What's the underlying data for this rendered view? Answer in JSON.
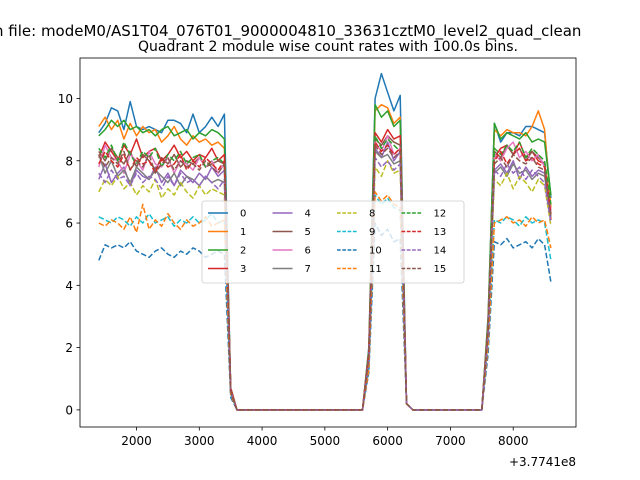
{
  "figure": {
    "suptitle": "n file: modeM0/AS1T04_076T01_9000004810_33631cztM0_level2_quad_clean"
  },
  "chart_data": {
    "type": "line",
    "title": "Quadrant 2 module wise count rates with 100.0s bins.",
    "xlabel": "",
    "ylabel": "",
    "x_offset_label": "+3.7741e8",
    "xlim": [
      1100,
      9000
    ],
    "ylim": [
      -0.55,
      11.3
    ],
    "xticks": [
      2000,
      3000,
      4000,
      5000,
      6000,
      7000,
      8000
    ],
    "yticks": [
      0,
      2,
      4,
      6,
      8,
      10
    ],
    "grid": false,
    "legend": {
      "placement": "center",
      "ncol": 4
    },
    "x": [
      1400,
      1500,
      1600,
      1700,
      1800,
      1900,
      2000,
      2100,
      2200,
      2300,
      2400,
      2500,
      2600,
      2700,
      2800,
      2900,
      3000,
      3100,
      3200,
      3300,
      3400,
      3500,
      3600,
      3700,
      5600,
      5700,
      5800,
      5900,
      6000,
      6100,
      6200,
      6300,
      6400,
      7500,
      7600,
      7700,
      7800,
      7900,
      8000,
      8100,
      8200,
      8300,
      8400,
      8500,
      8600
    ],
    "series": [
      {
        "name": "0",
        "color": "#1f77b4",
        "dash": "solid",
        "values": [
          8.9,
          9.2,
          9.7,
          9.6,
          9.0,
          9.9,
          9.1,
          9.0,
          9.1,
          9.0,
          8.9,
          9.3,
          9.3,
          9.2,
          8.9,
          9.5,
          8.9,
          9.1,
          9.4,
          9.1,
          9.5,
          0.6,
          0,
          0,
          0,
          2.0,
          10.0,
          10.8,
          10.2,
          9.6,
          10.1,
          0.2,
          0,
          0,
          3.0,
          9.2,
          8.6,
          8.9,
          8.9,
          8.8,
          9.1,
          9.1,
          9.0,
          8.9,
          6.8
        ]
      },
      {
        "name": "1",
        "color": "#ff7f0e",
        "dash": "solid",
        "values": [
          9.1,
          9.4,
          9.0,
          9.3,
          8.7,
          9.2,
          8.8,
          9.1,
          8.9,
          9.0,
          8.6,
          8.8,
          9.1,
          8.7,
          8.5,
          8.8,
          8.6,
          8.7,
          8.5,
          8.6,
          8.4,
          0.7,
          0,
          0,
          0,
          1.9,
          9.6,
          9.8,
          9.7,
          9.2,
          9.4,
          0.2,
          0,
          0,
          2.9,
          9.0,
          8.8,
          9.0,
          8.9,
          8.9,
          8.8,
          9.1,
          9.6,
          9.0,
          6.5
        ]
      },
      {
        "name": "2",
        "color": "#2ca02c",
        "dash": "solid",
        "values": [
          8.8,
          9.0,
          9.3,
          9.1,
          9.3,
          9.0,
          9.1,
          8.9,
          9.0,
          8.8,
          9.0,
          9.1,
          8.8,
          8.9,
          9.0,
          8.7,
          8.9,
          8.8,
          9.0,
          8.9,
          8.7,
          0.7,
          0,
          0,
          0,
          1.9,
          9.8,
          9.4,
          9.6,
          9.1,
          9.3,
          0.2,
          0,
          0,
          2.9,
          9.2,
          8.7,
          8.9,
          8.8,
          8.7,
          8.9,
          8.6,
          8.7,
          8.6,
          6.9
        ]
      },
      {
        "name": "3",
        "color": "#d62728",
        "dash": "solid",
        "values": [
          8.1,
          8.6,
          8.3,
          8.0,
          8.5,
          8.2,
          8.7,
          8.1,
          8.3,
          8.4,
          8.0,
          8.2,
          8.5,
          8.1,
          8.3,
          8.0,
          8.2,
          8.1,
          8.4,
          8.0,
          8.2,
          0.7,
          0,
          0,
          0,
          1.8,
          8.9,
          8.6,
          9.0,
          8.7,
          8.8,
          0.2,
          0,
          0,
          2.7,
          8.1,
          8.4,
          8.5,
          8.2,
          8.6,
          8.1,
          8.3,
          8.0,
          7.9,
          6.1
        ]
      },
      {
        "name": "4",
        "color": "#9467bd",
        "dash": "solid",
        "values": [
          7.4,
          7.9,
          7.3,
          7.6,
          7.8,
          7.2,
          7.7,
          7.5,
          7.4,
          7.8,
          7.3,
          7.6,
          7.2,
          7.7,
          7.5,
          7.3,
          7.6,
          7.4,
          7.8,
          7.5,
          7.7,
          0.6,
          0,
          0,
          0,
          1.7,
          8.4,
          8.1,
          8.6,
          8.0,
          8.3,
          0.2,
          0,
          0,
          2.5,
          7.7,
          7.9,
          7.6,
          8.0,
          7.4,
          7.8,
          7.5,
          7.7,
          7.6,
          6.4
        ]
      },
      {
        "name": "5",
        "color": "#8c564b",
        "dash": "solid",
        "values": [
          8.3,
          8.0,
          8.4,
          8.1,
          7.9,
          8.3,
          7.8,
          8.2,
          8.0,
          7.7,
          8.1,
          7.9,
          8.2,
          7.8,
          8.0,
          7.9,
          8.1,
          7.8,
          7.9,
          8.0,
          7.9,
          0.6,
          0,
          0,
          0,
          1.7,
          8.7,
          8.5,
          8.8,
          8.6,
          8.5,
          0.2,
          0,
          0,
          2.6,
          8.3,
          8.1,
          8.5,
          8.2,
          8.4,
          8.0,
          8.3,
          8.1,
          7.9,
          6.3
        ]
      },
      {
        "name": "6",
        "color": "#e377c2",
        "dash": "solid",
        "values": [
          7.8,
          8.5,
          8.1,
          8.0,
          7.6,
          8.2,
          8.0,
          7.7,
          8.3,
          7.9,
          7.8,
          8.1,
          7.6,
          8.0,
          7.9,
          7.7,
          8.1,
          7.8,
          8.0,
          7.6,
          7.9,
          0.6,
          0,
          0,
          0,
          1.7,
          8.6,
          8.3,
          8.8,
          8.2,
          8.4,
          0.2,
          0,
          0,
          2.6,
          8.2,
          8.0,
          8.4,
          8.6,
          8.1,
          8.3,
          8.0,
          8.2,
          7.8,
          6.4
        ]
      },
      {
        "name": "7",
        "color": "#7f7f7f",
        "dash": "solid",
        "values": [
          8.2,
          7.6,
          8.0,
          7.5,
          7.7,
          7.3,
          7.8,
          7.6,
          7.4,
          7.7,
          7.5,
          7.3,
          7.6,
          7.2,
          7.5,
          7.4,
          7.2,
          7.5,
          7.3,
          7.4,
          7.3,
          0.6,
          0,
          0,
          0,
          1.6,
          8.3,
          8.1,
          8.2,
          7.9,
          8.0,
          0.2,
          0,
          0,
          2.5,
          7.6,
          7.8,
          7.5,
          7.9,
          7.6,
          7.7,
          7.4,
          7.6,
          7.5,
          6.2
        ]
      },
      {
        "name": "8",
        "color": "#bcbd22",
        "dash": "dashed",
        "values": [
          7.0,
          7.4,
          7.2,
          7.5,
          7.1,
          7.3,
          6.9,
          7.2,
          7.0,
          7.4,
          6.8,
          7.1,
          6.9,
          7.3,
          7.0,
          6.8,
          7.2,
          6.9,
          7.1,
          7.0,
          6.9,
          0.6,
          0,
          0,
          0,
          1.5,
          7.8,
          7.5,
          8.0,
          7.6,
          7.7,
          0.2,
          0,
          0,
          2.4,
          7.4,
          7.2,
          7.6,
          7.1,
          7.5,
          7.3,
          7.0,
          7.4,
          7.2,
          5.9
        ]
      },
      {
        "name": "9",
        "color": "#17becf",
        "dash": "dashed",
        "values": [
          6.2,
          6.1,
          6.0,
          6.2,
          6.1,
          5.9,
          6.2,
          6.0,
          6.3,
          6.0,
          6.1,
          6.2,
          5.9,
          6.1,
          6.0,
          6.2,
          6.0,
          6.1,
          6.3,
          6.0,
          6.1,
          0.5,
          0,
          0,
          0,
          1.3,
          6.9,
          6.6,
          6.8,
          6.5,
          6.4,
          0.2,
          0,
          0,
          2.1,
          6.1,
          6.0,
          6.2,
          6.1,
          5.9,
          6.2,
          6.0,
          6.1,
          6.0,
          4.8
        ]
      },
      {
        "name": "10",
        "color": "#1f77b4",
        "dash": "dashed",
        "values": [
          4.8,
          5.3,
          5.2,
          5.3,
          5.2,
          5.4,
          5.1,
          5.0,
          4.9,
          5.1,
          5.2,
          5.0,
          4.9,
          5.1,
          5.0,
          5.2,
          5.1,
          4.9,
          5.0,
          5.1,
          5.0,
          0.4,
          0,
          0,
          0,
          1.2,
          6.0,
          5.6,
          5.8,
          5.4,
          5.5,
          0.2,
          0,
          0,
          1.8,
          5.4,
          5.3,
          5.5,
          5.2,
          5.3,
          5.4,
          5.2,
          5.5,
          5.3,
          4.1
        ]
      },
      {
        "name": "11",
        "color": "#ff7f0e",
        "dash": "dashed",
        "values": [
          6.0,
          5.9,
          6.1,
          6.0,
          5.8,
          6.2,
          5.7,
          6.6,
          5.8,
          6.1,
          5.9,
          6.3,
          6.0,
          5.8,
          6.1,
          5.9,
          6.0,
          6.2,
          5.9,
          6.0,
          6.1,
          0.5,
          0,
          0,
          0,
          1.3,
          7.0,
          6.7,
          6.9,
          6.6,
          6.5,
          0.2,
          0,
          0,
          2.1,
          6.0,
          6.1,
          6.2,
          6.0,
          6.1,
          5.9,
          6.2,
          6.0,
          6.1,
          5.2
        ]
      },
      {
        "name": "12",
        "color": "#2ca02c",
        "dash": "dashed",
        "values": [
          8.4,
          8.1,
          8.5,
          8.0,
          8.6,
          8.2,
          7.9,
          8.3,
          8.1,
          8.4,
          7.8,
          8.2,
          8.0,
          8.3,
          7.9,
          8.1,
          8.2,
          7.8,
          8.0,
          8.1,
          7.9,
          0.6,
          0,
          0,
          0,
          1.8,
          8.8,
          8.4,
          8.7,
          8.5,
          8.3,
          0.2,
          0,
          0,
          2.6,
          8.4,
          8.2,
          8.5,
          8.3,
          8.6,
          8.1,
          8.4,
          8.2,
          8.0,
          6.6
        ]
      },
      {
        "name": "13",
        "color": "#d62728",
        "dash": "dashed",
        "values": [
          7.9,
          8.3,
          8.0,
          7.8,
          8.2,
          7.7,
          8.1,
          7.9,
          8.0,
          7.6,
          8.1,
          7.8,
          7.9,
          8.2,
          7.7,
          8.0,
          7.8,
          8.1,
          7.9,
          7.7,
          8.0,
          0.6,
          0,
          0,
          0,
          1.8,
          8.6,
          8.3,
          8.5,
          8.2,
          8.4,
          0.2,
          0,
          0,
          2.6,
          8.0,
          8.3,
          7.9,
          8.2,
          8.4,
          8.0,
          8.1,
          7.9,
          7.8,
          6.3
        ]
      },
      {
        "name": "14",
        "color": "#9467bd",
        "dash": "dashed",
        "values": [
          7.6,
          7.3,
          7.7,
          7.4,
          7.5,
          7.2,
          7.6,
          7.3,
          7.5,
          7.4,
          7.1,
          7.5,
          7.2,
          7.6,
          7.3,
          7.4,
          7.2,
          7.5,
          7.3,
          7.1,
          7.4,
          0.6,
          0,
          0,
          0,
          1.6,
          8.1,
          7.8,
          8.0,
          7.7,
          7.9,
          0.2,
          0,
          0,
          2.4,
          7.7,
          7.5,
          7.9,
          7.6,
          7.8,
          7.4,
          7.7,
          7.5,
          7.3,
          6.0
        ]
      },
      {
        "name": "15",
        "color": "#8c564b",
        "dash": "dashed",
        "values": [
          8.2,
          7.8,
          8.1,
          7.9,
          8.3,
          7.7,
          8.0,
          7.8,
          8.2,
          7.6,
          7.9,
          8.1,
          7.7,
          8.0,
          7.8,
          7.9,
          7.7,
          8.0,
          7.8,
          7.6,
          7.9,
          0.6,
          0,
          0,
          0,
          1.7,
          8.5,
          8.2,
          8.4,
          8.1,
          8.3,
          0.2,
          0,
          0,
          2.5,
          7.9,
          8.1,
          7.8,
          8.2,
          8.0,
          7.9,
          8.1,
          7.8,
          7.7,
          6.2
        ]
      }
    ]
  }
}
